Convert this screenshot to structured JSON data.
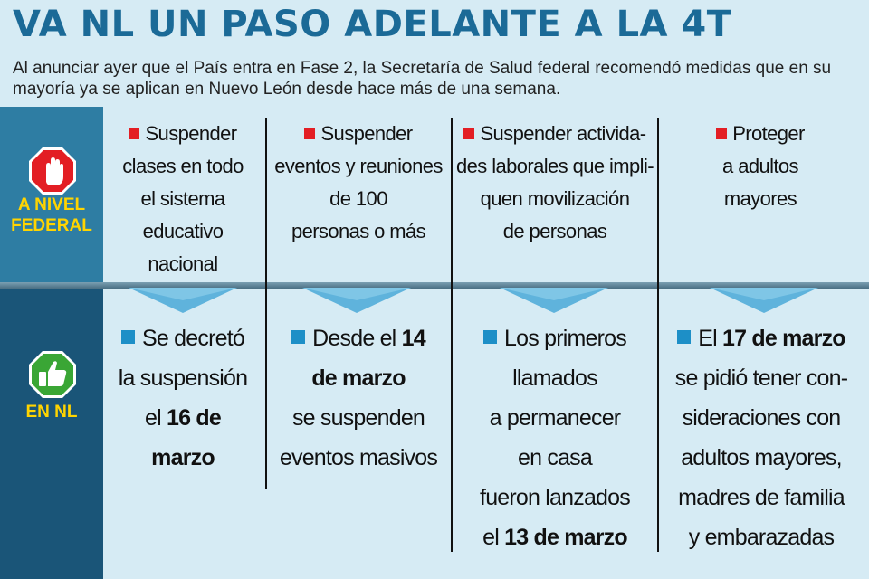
{
  "header": {
    "title": "VA NL UN PASO ADELANTE A LA 4T",
    "subtitle": "Al anunciar ayer que el País entra en Fase 2, la Secretaría de Salud federal recomendó medidas que en su mayoría ya se aplican en Nuevo León desde hace más de una semana."
  },
  "rows": {
    "federal": {
      "label_line1": "A NIVEL",
      "label_line2": "FEDERAL",
      "icon": "stop-hand-icon"
    },
    "nl": {
      "label": "EN NL",
      "icon": "thumbs-up-icon"
    }
  },
  "colors": {
    "title": "#1b6a97",
    "label": "#ffd400",
    "red_bullet": "#e31e24",
    "blue_bullet": "#1d8fc7",
    "background": "#d6ebf4"
  },
  "columns": [
    {
      "federal": [
        "Suspender",
        "clases en todo",
        "el sistema",
        "educativo",
        "nacional"
      ],
      "nl": [
        [
          "Se decretó"
        ],
        [
          "la suspensión"
        ],
        [
          "el ",
          "16 de"
        ],
        [
          "",
          "marzo"
        ]
      ]
    },
    {
      "federal": [
        "Suspender",
        "eventos y reuniones",
        "de 100",
        "personas o más"
      ],
      "nl": [
        [
          "Desde el ",
          "14"
        ],
        [
          "",
          "de marzo"
        ],
        [
          "se suspenden"
        ],
        [
          "eventos masivos"
        ]
      ]
    },
    {
      "federal": [
        "Suspender activida-",
        "des laborales que impli-",
        "quen movilización",
        "de personas"
      ],
      "nl": [
        [
          "Los primeros"
        ],
        [
          "llamados"
        ],
        [
          "a permanecer"
        ],
        [
          "en casa"
        ],
        [
          "fueron lanzados"
        ],
        [
          "el ",
          "13 de marzo"
        ]
      ]
    },
    {
      "federal": [
        "Proteger",
        "a adultos",
        "mayores"
      ],
      "nl": [
        [
          "El ",
          "17 de marzo"
        ],
        [
          "se pidió tener con-"
        ],
        [
          "sideraciones con"
        ],
        [
          "adultos mayores,"
        ],
        [
          "madres de familia"
        ],
        [
          "y embarazadas"
        ]
      ]
    }
  ]
}
